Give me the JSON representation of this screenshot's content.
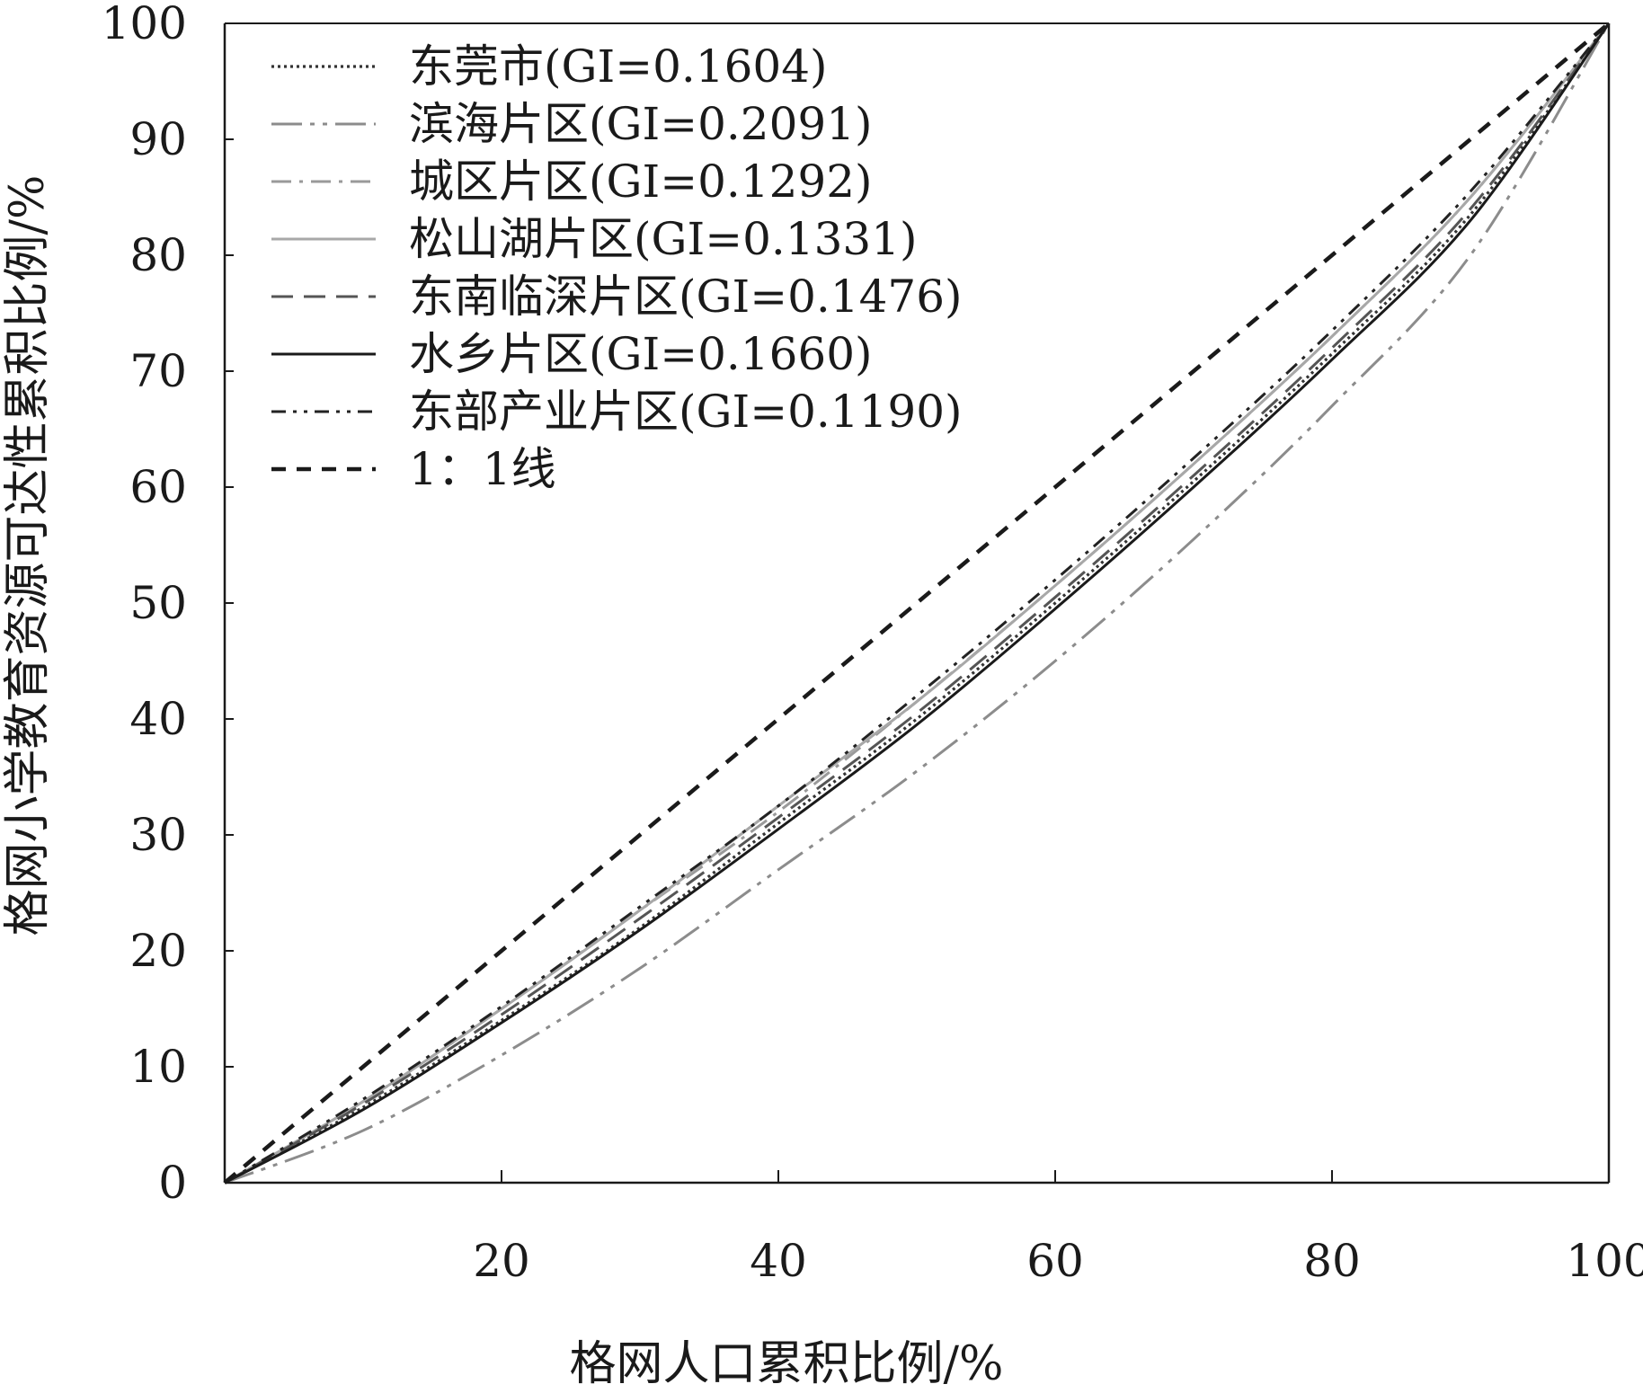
{
  "chart_data": {
    "type": "line",
    "xlabel": "格网人口累积比例/%",
    "ylabel": "格网小学教育资源可达性累积比例/%",
    "xlim": [
      0,
      100
    ],
    "ylim": [
      0,
      100
    ],
    "x_ticks": [
      "20",
      "40",
      "60",
      "80",
      "100"
    ],
    "y_ticks": [
      "0",
      "10",
      "20",
      "30",
      "40",
      "50",
      "60",
      "70",
      "80",
      "90",
      "100"
    ],
    "grid": false,
    "legend_position": "top-left",
    "x": [
      0,
      10,
      20,
      30,
      40,
      50,
      60,
      70,
      80,
      90,
      100
    ],
    "series": [
      {
        "name": "东莞市(GI=0.1604)",
        "color": "#333333",
        "dash": "dotted",
        "values": [
          0,
          6.5,
          14,
          22,
          31,
          40,
          50,
          60.5,
          71.5,
          83.5,
          100
        ]
      },
      {
        "name": "滨海片区(GI=0.2091)",
        "color": "#8c8c8c",
        "dash": "dashdotdot-long",
        "values": [
          0,
          4.5,
          11,
          18.5,
          27,
          35.5,
          45,
          55.5,
          67,
          80,
          100
        ]
      },
      {
        "name": "城区片区(GI=0.1292)",
        "color": "#9a9a9a",
        "dash": "dashdot",
        "values": [
          0,
          7,
          15,
          23.5,
          32,
          41.5,
          51.5,
          62,
          73,
          85,
          100
        ]
      },
      {
        "name": "松山湖片区(GI=0.1331)",
        "color": "#a8a8a8",
        "dash": "solid",
        "values": [
          0,
          7,
          15,
          23.5,
          32.5,
          41.5,
          51.5,
          62,
          73,
          85,
          100
        ]
      },
      {
        "name": "东南临深片区(GI=0.1476)",
        "color": "#555555",
        "dash": "dashed",
        "values": [
          0,
          6.8,
          14.5,
          22.8,
          31.5,
          40.5,
          50.5,
          61,
          72,
          84,
          100
        ]
      },
      {
        "name": "水乡片区(GI=0.1660)",
        "color": "#1a1a1a",
        "dash": "solid",
        "values": [
          0,
          6.3,
          13.8,
          21.8,
          30.5,
          39.5,
          49.5,
          60,
          71,
          83,
          100
        ]
      },
      {
        "name": "东部产业片区(GI=0.1190)",
        "color": "#222222",
        "dash": "dashdotdot",
        "values": [
          0,
          7.2,
          15.2,
          23.8,
          32.5,
          42,
          52,
          62.5,
          73.5,
          85.5,
          100
        ]
      },
      {
        "name": "1：1线",
        "color": "#1a1a1a",
        "dash": "dashed-heavy",
        "values": [
          0,
          10,
          20,
          30,
          40,
          50,
          60,
          70,
          80,
          90,
          100
        ]
      }
    ]
  }
}
